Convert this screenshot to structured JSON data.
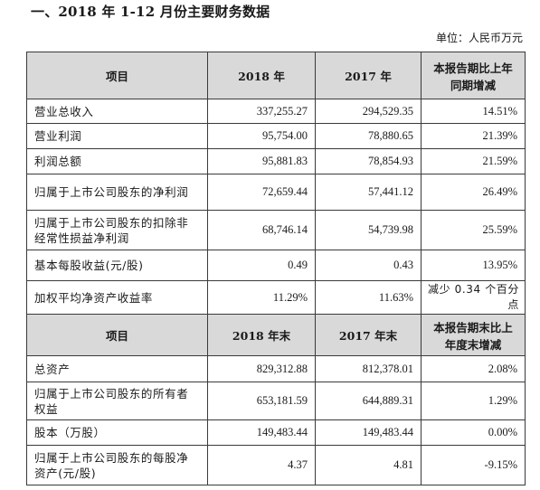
{
  "title": "一、2018 年 1-12 月份主要财务数据",
  "unit": "单位：人民币万元",
  "section1": {
    "header": [
      "项目",
      "2018 年",
      "2017 年",
      "本报告期比上年同期增减"
    ],
    "rows": [
      {
        "item": "营业总收入",
        "v2018": "337,255.27",
        "v2017": "294,529.35",
        "change": "14.51%"
      },
      {
        "item": "营业利润",
        "v2018": "95,754.00",
        "v2017": "78,880.65",
        "change": "21.39%"
      },
      {
        "item": "利润总额",
        "v2018": "95,881.83",
        "v2017": "78,854.93",
        "change": "21.59%"
      },
      {
        "item": "归属于上市公司股东的净利润",
        "v2018": "72,659.44",
        "v2017": "57,441.12",
        "change": "26.49%"
      },
      {
        "item": "归属于上市公司股东的扣除非经常性损益净利润",
        "v2018": "68,746.14",
        "v2017": "54,739.98",
        "change": "25.59%"
      },
      {
        "item": "基本每股收益(元/股)",
        "v2018": "0.49",
        "v2017": "0.43",
        "change": "13.95%"
      },
      {
        "item": "加权平均净资产收益率",
        "v2018": "11.29%",
        "v2017": "11.63%",
        "change": "减少 0.34 个百分点"
      }
    ]
  },
  "section2": {
    "header": [
      "项目",
      "2018 年末",
      "2017 年末",
      "本报告期末比上年度末增减"
    ],
    "rows": [
      {
        "item": "总资产",
        "v2018": "829,312.88",
        "v2017": "812,378.01",
        "change": "2.08%"
      },
      {
        "item": "归属于上市公司股东的所有者权益",
        "v2018": "653,181.59",
        "v2017": "644,889.31",
        "change": "1.29%"
      },
      {
        "item": "股本（万股）",
        "v2018": "149,483.44",
        "v2017": "149,483.44",
        "change": "0.00%"
      },
      {
        "item": "归属于上市公司股东的每股净资产(元/股)",
        "v2018": "4.37",
        "v2017": "4.81",
        "change": "-9.15%"
      }
    ]
  }
}
